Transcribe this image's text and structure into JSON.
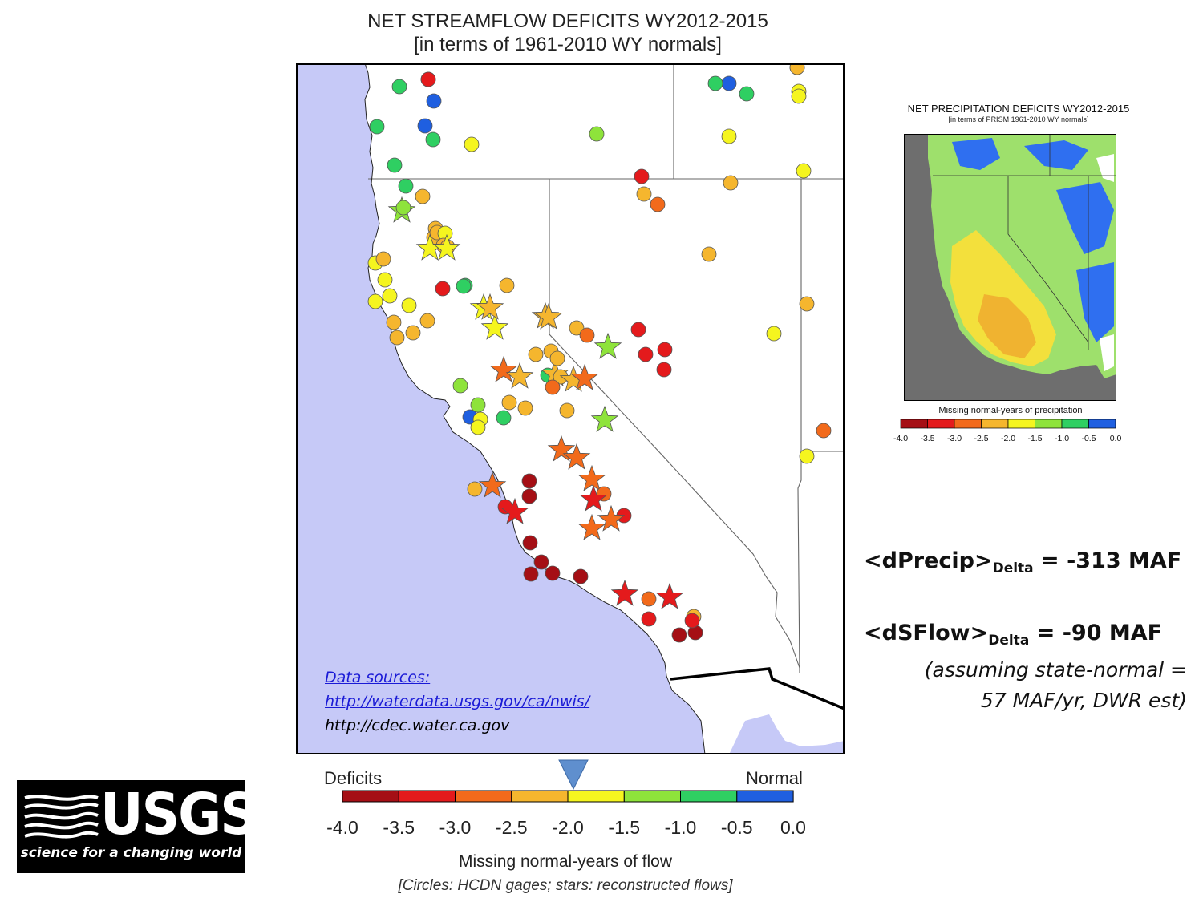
{
  "main": {
    "title_line1": "NET STREAMFLOW DEFICITS WY2012-2015",
    "title_line2": "[in terms of 1961-2010 WY normals]",
    "data_sources": {
      "heading": "Data sources:",
      "link1": "http://waterdata.usgs.gov/ca/nwis/",
      "link2": "http://cdec.water.ca.gov"
    }
  },
  "legend": {
    "left_label": "Deficits",
    "right_label": "Normal",
    "ticks": [
      "-4.0",
      "-3.5",
      "-3.0",
      "-2.5",
      "-2.0",
      "-1.5",
      "-1.0",
      "-0.5",
      "0.0"
    ],
    "colors": [
      "#a50f15",
      "#e41a1c",
      "#f26a1b",
      "#f5b62e",
      "#f5f51f",
      "#8ee33b",
      "#2fcf62",
      "#1f5fe0"
    ],
    "marker_value": -1.95,
    "caption": "Missing normal-years of flow",
    "note": "[Circles: HCDN gages; stars: reconstructed flows]"
  },
  "inset": {
    "title": "NET PRECIPITATION DEFICITS WY2012-2015",
    "subtitle": "[in terms of PRISM 1961-2010 WY normals]",
    "legend_title": "Missing normal-years of precipitation",
    "ticks": [
      "-4.0",
      "-3.5",
      "-3.0",
      "-2.5",
      "-2.0",
      "-1.5",
      "-1.0",
      "-0.5",
      "0.0"
    ]
  },
  "summary": {
    "precip_label": "<dPrecip>",
    "precip_sub": "Delta",
    "precip_value": " = -313 MAF",
    "flow_label": "<dSFlow>",
    "flow_sub": "Delta",
    "flow_value": " = -90 MAF",
    "note_line1": "(assuming state-normal =",
    "note_line2": "57 MAF/yr, DWR est)"
  },
  "logo": {
    "wordmark": "USGS",
    "tagline": "science for a changing world"
  },
  "stations": [
    {
      "type": "circle",
      "value": -0.1
    },
    {
      "type": "circle",
      "value": -0.1
    },
    {
      "type": "circle",
      "value": -0.1
    },
    {
      "type": "circle",
      "value": -0.1
    },
    {
      "type": "circle",
      "value": -0.8
    },
    {
      "type": "circle",
      "value": -0.8
    },
    {
      "type": "circle",
      "value": -0.8
    },
    {
      "type": "circle",
      "value": -0.8
    },
    {
      "type": "circle",
      "value": -1.9
    },
    {
      "type": "circle",
      "value": -1.1
    },
    {
      "type": "circle",
      "value": -0.8
    },
    {
      "type": "circle",
      "value": -0.8
    },
    {
      "type": "circle",
      "value": -1.2
    },
    {
      "type": "circle",
      "value": -1.8
    },
    {
      "type": "star",
      "value": -1.2
    },
    {
      "type": "circle",
      "value": -0.8
    },
    {
      "type": "circle",
      "value": -1.9
    },
    {
      "type": "circle",
      "value": -1.9
    },
    {
      "type": "circle",
      "value": -1.9
    },
    {
      "type": "circle",
      "value": -1.9
    },
    {
      "type": "circle",
      "value": -2.1
    },
    {
      "type": "circle",
      "value": -0.8
    },
    {
      "type": "star",
      "value": -1.7
    },
    {
      "type": "star",
      "value": -1.7
    },
    {
      "type": "star",
      "value": -1.2
    },
    {
      "type": "circle",
      "value": -0.8
    },
    {
      "type": "circle",
      "value": -2.1
    },
    {
      "type": "circle",
      "value": -1.9
    },
    {
      "type": "circle",
      "value": -2.1
    },
    {
      "type": "circle",
      "value": -2.1
    },
    {
      "type": "circle",
      "value": -2.1
    },
    {
      "type": "circle",
      "value": -3.1
    },
    {
      "type": "circle",
      "value": -1.2
    },
    {
      "type": "circle",
      "value": -2.3
    },
    {
      "type": "circle",
      "value": -2.1
    },
    {
      "type": "circle",
      "value": -2.1
    },
    {
      "type": "circle",
      "value": -2.3
    },
    {
      "type": "circle",
      "value": -1.8
    },
    {
      "type": "circle",
      "value": -2.3
    },
    {
      "type": "circle",
      "value": -2.1
    },
    {
      "type": "star",
      "value": -1.8
    },
    {
      "type": "star",
      "value": -1.8
    },
    {
      "type": "star",
      "value": -2.3
    },
    {
      "type": "circle",
      "value": -2.4
    },
    {
      "type": "circle",
      "value": -2.9
    },
    {
      "type": "circle",
      "value": -3.4
    },
    {
      "type": "circle",
      "value": -2.3
    },
    {
      "type": "star",
      "value": -2.3
    },
    {
      "type": "star",
      "value": -2.1
    },
    {
      "type": "circle",
      "value": -2.2
    },
    {
      "type": "circle",
      "value": -2.1
    },
    {
      "type": "star",
      "value": -2.6
    },
    {
      "type": "star",
      "value": -2.1
    },
    {
      "type": "circle",
      "value": -0.8
    },
    {
      "type": "star",
      "value": -2.4
    },
    {
      "type": "circle",
      "value": -2.2
    },
    {
      "type": "star",
      "value": -2.4
    },
    {
      "type": "star",
      "value": -2.8
    },
    {
      "type": "circle",
      "value": -2.1
    },
    {
      "type": "circle",
      "value": -2.2
    },
    {
      "type": "circle",
      "value": -2.8
    },
    {
      "type": "circle",
      "value": -3.4
    },
    {
      "type": "circle",
      "value": -3.3
    },
    {
      "type": "circle",
      "value": -2.4
    },
    {
      "type": "star",
      "value": -1.2
    },
    {
      "type": "circle",
      "value": -2.2
    },
    {
      "type": "circle",
      "value": -3.2
    },
    {
      "type": "circle",
      "value": -2.6
    },
    {
      "type": "star",
      "value": -2.7
    },
    {
      "type": "star",
      "value": -2.7
    },
    {
      "type": "star",
      "value": -2.7
    },
    {
      "type": "circle",
      "value": -2.6
    },
    {
      "type": "star",
      "value": -3.3
    },
    {
      "type": "circle",
      "value": -3.3
    },
    {
      "type": "star",
      "value": -2.7
    },
    {
      "type": "star",
      "value": -2.7
    },
    {
      "type": "circle",
      "value": -2.3
    },
    {
      "type": "star",
      "value": -2.6
    },
    {
      "type": "circle",
      "value": -3.9
    },
    {
      "type": "circle",
      "value": -3.9
    },
    {
      "type": "circle",
      "value": -3.4
    },
    {
      "type": "star",
      "value": -3.4
    },
    {
      "type": "circle",
      "value": -3.9
    },
    {
      "type": "circle",
      "value": -3.9
    },
    {
      "type": "circle",
      "value": -3.9
    },
    {
      "type": "circle",
      "value": -3.9
    },
    {
      "type": "circle",
      "value": -3.9
    },
    {
      "type": "star",
      "value": -3.4
    },
    {
      "type": "circle",
      "value": -2.8
    },
    {
      "type": "star",
      "value": -3.4
    },
    {
      "type": "circle",
      "value": -3.9
    },
    {
      "type": "circle",
      "value": -3.4
    },
    {
      "type": "circle",
      "value": -2.3
    },
    {
      "type": "circle",
      "value": -3.9
    },
    {
      "type": "circle",
      "value": -3.4
    },
    {
      "type": "circle",
      "value": -2.3
    },
    {
      "type": "circle",
      "value": -1.9
    },
    {
      "type": "circle",
      "value": -2.3
    },
    {
      "type": "circle",
      "value": -2.3
    },
    {
      "type": "circle",
      "value": -3.3
    },
    {
      "type": "circle",
      "value": -2.1
    },
    {
      "type": "circle",
      "value": -1.9
    },
    {
      "type": "circle",
      "value": -2.7
    },
    {
      "type": "circle",
      "value": -1.9
    },
    {
      "type": "circle",
      "value": -1.9
    },
    {
      "type": "circle",
      "value": -1.9
    },
    {
      "type": "circle",
      "value": -3.3
    },
    {
      "type": "circle",
      "value": -2.2
    },
    {
      "type": "circle",
      "value": -1.2
    },
    {
      "type": "circle",
      "value": -1.2
    },
    {
      "type": "circle",
      "value": -0.1
    },
    {
      "type": "circle",
      "value": -0.8
    },
    {
      "type": "circle",
      "value": -1.9
    },
    {
      "type": "circle",
      "value": -1.9
    },
    {
      "type": "circle",
      "value": -2.3
    },
    {
      "type": "circle",
      "value": -1.9
    },
    {
      "type": "circle",
      "value": -1.2
    },
    {
      "type": "circle",
      "value": -1.2
    }
  ]
}
